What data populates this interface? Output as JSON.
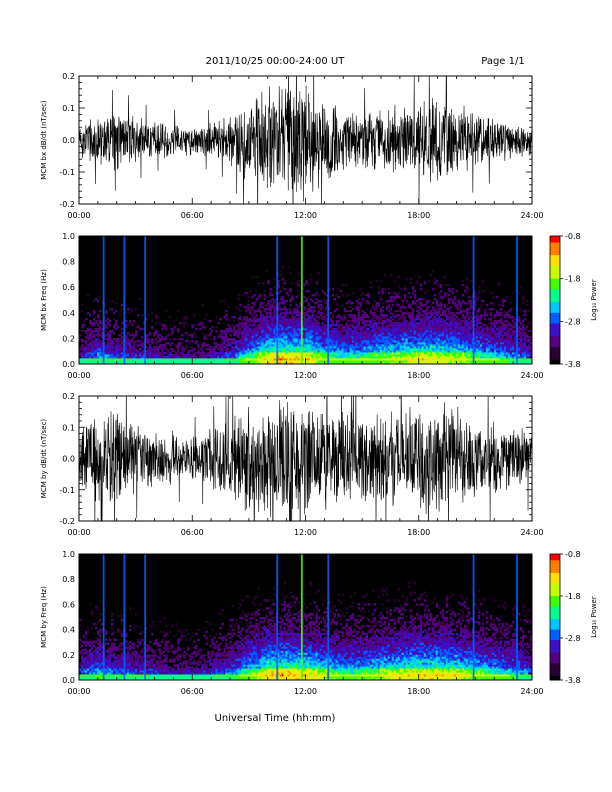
{
  "header": {
    "title": "2011/10/25  00:00-24:00 UT",
    "page": "Page 1/1"
  },
  "x_axis": {
    "title": "Universal Time (hh:mm)",
    "ticks": [
      "00:00",
      "06:00",
      "12:00",
      "18:00",
      "24:00"
    ]
  },
  "chart_data": [
    {
      "type": "line",
      "title": "",
      "ylabel": "MCM bx dB/dt (nT/sec)",
      "xlabel": "",
      "xlim": [
        0,
        24
      ],
      "ylim": [
        -0.2,
        0.2
      ],
      "yticks": [
        "0.2",
        "0.1",
        "0.0",
        "-0.1",
        "-0.2"
      ],
      "xticks": [
        "00:00",
        "06:00",
        "12:00",
        "18:00",
        "24:00"
      ],
      "grid": false,
      "color": "#000000",
      "series": [
        {
          "x": [
            0,
            1,
            2,
            3,
            4,
            5,
            6,
            7,
            8,
            9,
            10,
            11,
            12,
            13,
            14,
            15,
            16,
            17,
            18,
            19,
            20,
            21,
            22,
            23,
            24
          ],
          "envelope": [
            0.06,
            0.09,
            0.1,
            0.08,
            0.06,
            0.06,
            0.05,
            0.06,
            0.08,
            0.15,
            0.2,
            0.2,
            0.2,
            0.14,
            0.11,
            0.1,
            0.11,
            0.12,
            0.13,
            0.15,
            0.12,
            0.1,
            0.08,
            0.07,
            0.05
          ]
        }
      ]
    },
    {
      "type": "heatmap",
      "title": "",
      "ylabel": "MCM bx Freq (Hz)",
      "xlabel": "",
      "xlim": [
        0,
        24
      ],
      "ylim": [
        0,
        1.0
      ],
      "yticks": [
        "1.0",
        "0.8",
        "0.6",
        "0.4",
        "0.2",
        "0.0"
      ],
      "xticks": [
        "00:00",
        "06:00",
        "12:00",
        "18:00",
        "24:00"
      ],
      "colorbar": {
        "label": "Log₁₀ Power",
        "ticks": [
          "-0.8",
          "-1.8",
          "-2.8",
          "-3.8"
        ],
        "range": [
          -3.8,
          -0.8
        ]
      },
      "activity_by_hour": [
        0.25,
        0.45,
        0.35,
        0.3,
        0.25,
        0.2,
        0.2,
        0.25,
        0.35,
        0.6,
        0.85,
        0.9,
        0.85,
        0.7,
        0.55,
        0.6,
        0.7,
        0.75,
        0.8,
        0.8,
        0.75,
        0.65,
        0.55,
        0.45,
        0.35
      ],
      "broadband_events_hours": [
        1.3,
        2.4,
        3.5,
        10.5,
        11.8,
        13.2,
        20.9,
        23.2
      ]
    },
    {
      "type": "line",
      "title": "",
      "ylabel": "MCM by dB/dt (nT/sec)",
      "xlabel": "",
      "xlim": [
        0,
        24
      ],
      "ylim": [
        -0.2,
        0.2
      ],
      "yticks": [
        "0.2",
        "0.1",
        "0.0",
        "-0.1",
        "-0.2"
      ],
      "xticks": [
        "00:00",
        "06:00",
        "12:00",
        "18:00",
        "24:00"
      ],
      "grid": false,
      "color": "#000000",
      "series": [
        {
          "x": [
            0,
            1,
            2,
            3,
            4,
            5,
            6,
            7,
            8,
            9,
            10,
            11,
            12,
            13,
            14,
            15,
            16,
            17,
            18,
            19,
            20,
            21,
            22,
            23,
            24
          ],
          "envelope": [
            0.12,
            0.16,
            0.18,
            0.12,
            0.1,
            0.09,
            0.08,
            0.1,
            0.13,
            0.2,
            0.2,
            0.2,
            0.2,
            0.18,
            0.16,
            0.15,
            0.16,
            0.17,
            0.18,
            0.2,
            0.17,
            0.15,
            0.13,
            0.12,
            0.1
          ]
        }
      ]
    },
    {
      "type": "heatmap",
      "title": "",
      "ylabel": "MCM by Freq (Hz)",
      "xlabel": "",
      "xlim": [
        0,
        24
      ],
      "ylim": [
        0,
        1.0
      ],
      "yticks": [
        "1.0",
        "0.8",
        "0.6",
        "0.4",
        "0.2",
        "0.0"
      ],
      "xticks": [
        "00:00",
        "06:00",
        "12:00",
        "18:00",
        "24:00"
      ],
      "colorbar": {
        "label": "Log₁₀ Power",
        "ticks": [
          "-0.8",
          "-1.8",
          "-2.8",
          "-3.8"
        ],
        "range": [
          -3.8,
          -0.8
        ]
      },
      "activity_by_hour": [
        0.35,
        0.5,
        0.4,
        0.35,
        0.3,
        0.25,
        0.25,
        0.3,
        0.4,
        0.65,
        0.85,
        0.9,
        0.85,
        0.75,
        0.6,
        0.65,
        0.75,
        0.8,
        0.85,
        0.85,
        0.8,
        0.7,
        0.6,
        0.5,
        0.4
      ],
      "broadband_events_hours": [
        1.3,
        2.4,
        3.5,
        10.5,
        11.8,
        13.2,
        20.9,
        23.2
      ]
    }
  ],
  "colors": {
    "trace": "#000000",
    "heatmap_background": "#000000",
    "colormap": [
      "#000000",
      "#2a0033",
      "#55007f",
      "#3a10c8",
      "#0060ff",
      "#00c8ff",
      "#00ff90",
      "#40ff00",
      "#c8ff00",
      "#ffe000",
      "#ff8000",
      "#ff0000"
    ]
  }
}
